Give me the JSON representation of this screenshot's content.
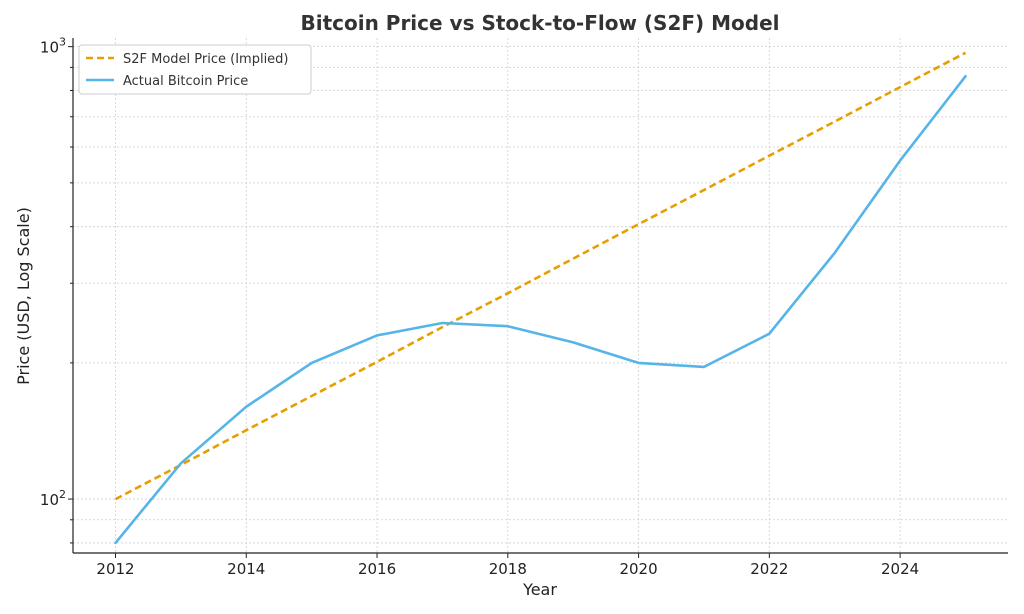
{
  "chart_data": {
    "type": "line",
    "title": "Bitcoin Price vs Stock-to-Flow (S2F) Model",
    "xlabel": "Year",
    "ylabel": "Price (USD, Log Scale)",
    "yscale": "log",
    "xlim": [
      2011.35,
      2025.65
    ],
    "ylim": [
      76,
      1045
    ],
    "x_ticks": [
      2012,
      2014,
      2016,
      2018,
      2020,
      2022,
      2024
    ],
    "x_tick_labels": [
      "2012",
      "2014",
      "2016",
      "2018",
      "2020",
      "2022",
      "2024"
    ],
    "y_major_ticks": [
      {
        "value": 100,
        "base": "10",
        "exp": "2"
      },
      {
        "value": 1000,
        "base": "10",
        "exp": "3"
      }
    ],
    "y_minor_ticks": [
      80,
      90,
      200,
      300,
      400,
      500,
      600,
      700,
      800,
      900
    ],
    "grid": true,
    "legend_position": "top-left",
    "x": [
      2012,
      2013,
      2014,
      2015,
      2016,
      2017,
      2018,
      2019,
      2020,
      2021,
      2022,
      2023,
      2024,
      2025
    ],
    "series": [
      {
        "name": "S2F Model Price (Implied)",
        "color": "#E69F00",
        "style": "dashed",
        "values": [
          100,
          119,
          142,
          169,
          201,
          240,
          285,
          340,
          405,
          482,
          574,
          683,
          814,
          969
        ]
      },
      {
        "name": "Actual Bitcoin Price",
        "color": "#56B4E9",
        "style": "solid",
        "values": [
          80,
          120,
          160,
          200,
          230,
          245,
          241,
          222,
          200,
          196,
          232,
          350,
          560,
          860
        ]
      }
    ]
  }
}
